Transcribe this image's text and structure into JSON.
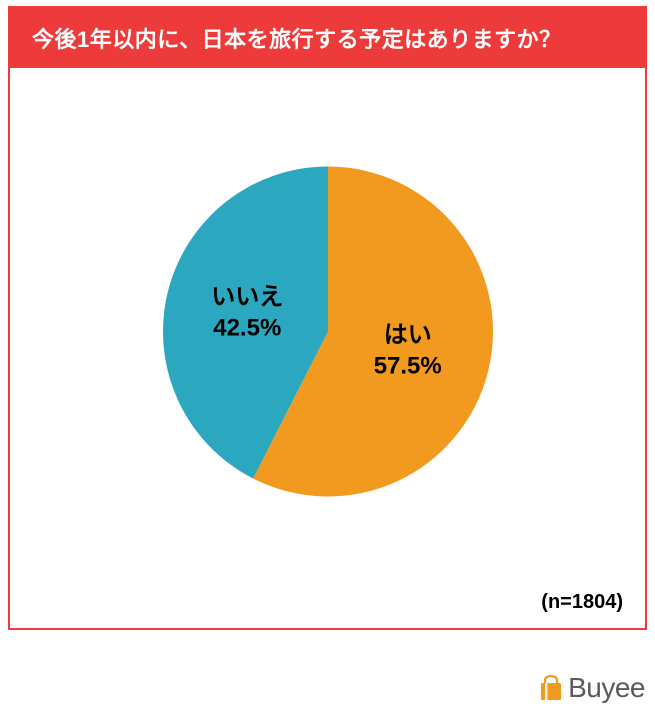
{
  "title": "今後1年以内に、日本を旅行する予定はありますか？",
  "chart": {
    "type": "pie",
    "radius": 165,
    "background": "#ffffff",
    "slices": [
      {
        "label": "はい",
        "percent_text": "57.5%",
        "value": 57.5,
        "color": "#f29a1f",
        "label_color": "#000000"
      },
      {
        "label": "いいえ",
        "percent_text": "42.5%",
        "value": 42.5,
        "color": "#2ba7bf",
        "label_color": "#000000"
      }
    ],
    "label_fontsize": 24,
    "start_angle_deg": -90
  },
  "sample_size": "(n=1804)",
  "brand": {
    "name": "Buyee",
    "icon_color": "#f29a1f",
    "text_color": "#5b5b5b"
  },
  "border_color": "#ed3b3b",
  "title_bg": "#ed3b3b",
  "title_color": "#ffffff"
}
